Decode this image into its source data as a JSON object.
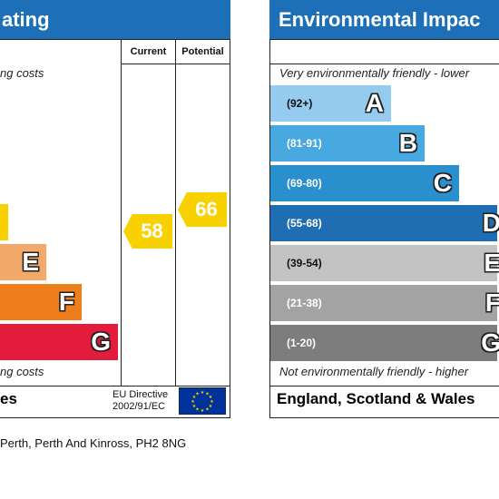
{
  "energy": {
    "title": "ating",
    "top_text": "ng costs",
    "bottom_text": "ng costs",
    "col_current": "Current",
    "col_potential": "Potential",
    "country_partial": "es",
    "eu_line1": "EU Directive",
    "eu_line2": "2002/91/EC",
    "bands": [
      {
        "letter": "",
        "color": "#f9d100",
        "value": 0.04
      },
      {
        "letter": "E",
        "color": "#f2a96a",
        "value": 0.23
      },
      {
        "letter": "F",
        "color": "#ee7d1b",
        "value": 0.41
      },
      {
        "letter": "G",
        "color": "#e31c3b",
        "value": 0.59
      }
    ]
  },
  "ratings": {
    "current": "58",
    "potential": "66",
    "color": "#f9d100"
  },
  "environmental": {
    "title": "Environmental Impac",
    "top_text": "Very environmentally friendly - lower",
    "bottom_text": "Not environmentally friendly - higher",
    "country": "England, Scotland & Wales",
    "bands": [
      {
        "range": "(92+)",
        "letter": "A",
        "color": "#95cbee",
        "text_color": "#111111",
        "value": 0.53
      },
      {
        "range": "(81-91)",
        "letter": "B",
        "color": "#48a8e0",
        "text_color": "#ffffff",
        "value": 0.68
      },
      {
        "range": "(69-80)",
        "letter": "C",
        "color": "#2a8fcd",
        "text_color": "#ffffff",
        "value": 0.83
      },
      {
        "range": "(55-68)",
        "letter": "D",
        "color": "#1f6db3",
        "text_color": "#ffffff",
        "value": 1.0
      },
      {
        "range": "(39-54)",
        "letter": "E",
        "color": "#c3c3c3",
        "text_color": "#111111",
        "value": 1.0
      },
      {
        "range": "(21-38)",
        "letter": "F",
        "color": "#a3a3a3",
        "text_color": "#ffffff",
        "value": 1.0
      },
      {
        "range": "(1-20)",
        "letter": "G",
        "color": "#7d7d7d",
        "text_color": "#ffffff",
        "value": 1.0
      }
    ]
  },
  "address": "Perth, Perth And Kinross, PH2 8NG"
}
